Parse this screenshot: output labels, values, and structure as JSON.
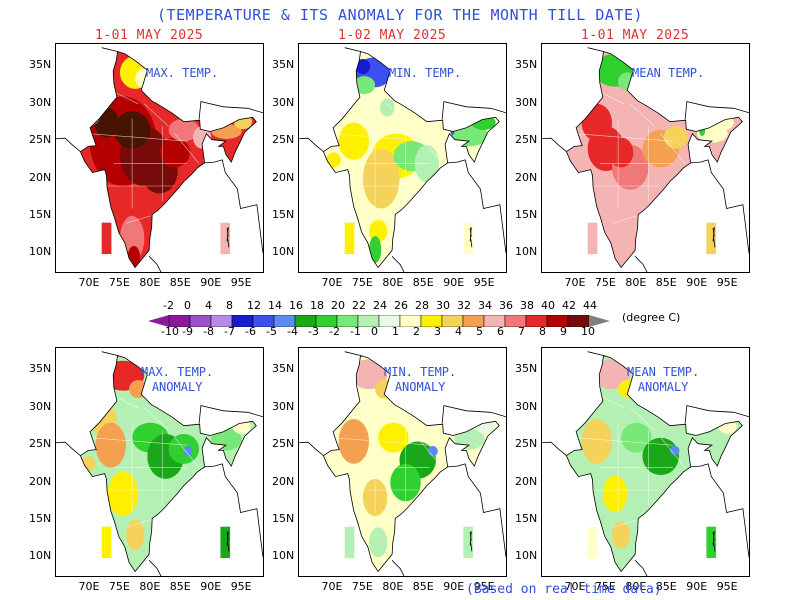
{
  "title": "(TEMPERATURE & ITS  ANOMALY FOR THE MONTH TILL DATE)",
  "panels": [
    {
      "date": "1-01 MAY 2025",
      "label": "MAX. TEMP.",
      "label2": "",
      "scheme": "max"
    },
    {
      "date": "1-02 MAY 2025",
      "label": "MIN. TEMP.",
      "label2": "",
      "scheme": "min"
    },
    {
      "date": "1-01 MAY 2025",
      "label": "MEAN TEMP.",
      "label2": "",
      "scheme": "mean"
    },
    {
      "date": "",
      "label": "MAX. TEMP.",
      "label2": "ANOMALY",
      "scheme": "amax"
    },
    {
      "date": "",
      "label": "MIN. TEMP.",
      "label2": "ANOMALY",
      "scheme": "amin"
    },
    {
      "date": "",
      "label": "MEAN TEMP.",
      "label2": "ANOMALY",
      "scheme": "amean"
    }
  ],
  "y_ticks": [
    "35N",
    "30N",
    "25N",
    "20N",
    "15N",
    "10N"
  ],
  "x_ticks": [
    "70E",
    "75E",
    "80E",
    "85E",
    "90E",
    "95E"
  ],
  "colorbar": {
    "temp_labels": [
      "-2",
      "0",
      "4",
      "8",
      "12",
      "14",
      "16",
      "18",
      "20",
      "22",
      "24",
      "26",
      "28",
      "30",
      "32",
      "34",
      "36",
      "38",
      "40",
      "42",
      "44"
    ],
    "anomaly_labels": [
      "-10",
      "-9",
      "-8",
      "-7",
      "-6",
      "-5",
      "-4",
      "-3",
      "-2",
      "-1",
      "0",
      "1",
      "2",
      "3",
      "4",
      "5",
      "6",
      "7",
      "8",
      "9",
      "10"
    ],
    "colors": [
      "#8a1a9a",
      "#9b50c8",
      "#b48ce6",
      "#1a1ad0",
      "#3c50f0",
      "#5a8cf0",
      "#1aa81a",
      "#30d030",
      "#78e878",
      "#b4f0b4",
      "#e6fae6",
      "#ffffc8",
      "#fff000",
      "#f5d25a",
      "#f5a050",
      "#f5b4b4",
      "#f07878",
      "#e62828",
      "#b40000",
      "#780a0a",
      "#461400"
    ],
    "unit": "(degree C)"
  },
  "footer": "(Based on real time data)"
}
